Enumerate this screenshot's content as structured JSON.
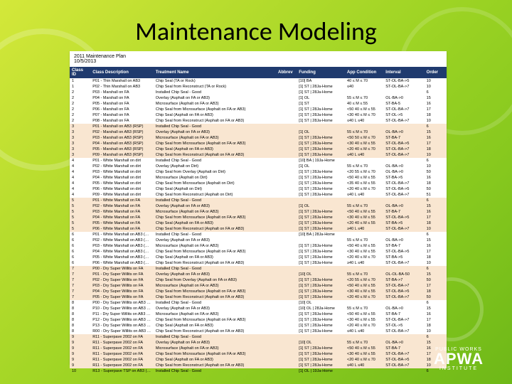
{
  "title": "Maintenance Modeling",
  "doc_header_line1": "2011 Maintenance Plan",
  "doc_header_line2": "10/5/2013",
  "headers": [
    "Class ID",
    "Class Description",
    "Treatment Name",
    "Abbrev",
    "Funding",
    "App Condition",
    "Interval",
    "Order"
  ],
  "col_colors": {
    "header_bg": "#1f3a6e",
    "header_fg": "#ffffff",
    "shade_bg": "#f9e6d1",
    "page_bg": "#ffffff"
  },
  "rows": [
    {
      "s": 0,
      "d": [
        "1",
        "P01 - Thin Marshall on AB3",
        "Chip Seal (TA or Rock)",
        "",
        "[10] BA",
        "40 ≤ M ≤ 70",
        "ST-OL-BA->5",
        "10"
      ]
    },
    {
      "s": 0,
      "d": [
        "1",
        "P02 - Thin Marshall on AB3",
        "Chip Seal from Reconstruct (TA or Rock)",
        "",
        "[1] ST | 28Ja-Home",
        "≤40",
        "ST-OL-BA->7",
        "10"
      ]
    },
    {
      "s": 0,
      "d": [
        "2",
        "P03 - Marshall on FA",
        "Installed Chip Seal - Good",
        "",
        "[1] ST | 28Ja-Home",
        "",
        "",
        "6"
      ]
    },
    {
      "s": 0,
      "d": [
        "2",
        "P04 - Marshall on FA",
        "Overlay (Asphalt on FA or AB3)",
        "",
        "[1] OL",
        "55 ≤ M ≤ 70",
        "OL-BA->0",
        "15"
      ]
    },
    {
      "s": 0,
      "d": [
        "2",
        "P05 - Marshall on FA",
        "Microsurface (Asphalt on FA or AB3)",
        "",
        "[1] ST",
        "40 ≤ M ≤ 55",
        "ST-BA-5",
        "16"
      ]
    },
    {
      "s": 0,
      "d": [
        "2",
        "P06 - Marshall on FA",
        "Chip Seal from Microsurface (Asphalt on FA or AB3)",
        "",
        "[1] ST | 28Ja-Home",
        "<50 40 ≤ M ≤ 55",
        "ST-OL-BA->7",
        "17"
      ]
    },
    {
      "s": 0,
      "d": [
        "2",
        "P07 - Marshall on FA",
        "Chip Seal (Asphalt on FA or AB3)",
        "",
        "[1] ST | 28Ja-Home",
        "<30 40 ≤ M ≤ 70",
        "ST-OL->5",
        "18"
      ]
    },
    {
      "s": 0,
      "d": [
        "2",
        "P08 - Marshall on FA",
        "Chip Seal from Reconstruct (Asphalt on FA or AB3)",
        "",
        "[1] ST | 28Ja-Home",
        "≤40 L ≤40",
        "ST-OL-BA->7",
        "10"
      ]
    },
    {
      "s": 1,
      "d": [
        "3",
        "P01 - Marshall on AB3 (RSP)",
        "Installed Chip Seal - Good",
        "",
        "",
        "",
        "",
        "6"
      ]
    },
    {
      "s": 1,
      "d": [
        "3",
        "P02 - Marshall on AB3 (RSP)",
        "Overlay (Asphalt on FA or AB3)",
        "",
        "[1] OL",
        "55 ≤ M ≤ 70",
        "OL-BA->0",
        "15"
      ]
    },
    {
      "s": 1,
      "d": [
        "3",
        "P03 - Marshall on AB3 (RSP)",
        "Microsurface (Asphalt on FA or AB3)",
        "",
        "[1] ST | 28Ja-Home",
        "<50 50 ≤ M ≤ 70",
        "ST-BA-7",
        "16"
      ]
    },
    {
      "s": 1,
      "d": [
        "3",
        "P04 - Marshall on AB3 (RSP)",
        "Chip Seal from Microsurface (Asphalt on FA or AB3)",
        "",
        "[1] ST | 28Ja-Home",
        "<30 40 ≤ M ≤ 55",
        "ST-OL-BA->5",
        "17"
      ]
    },
    {
      "s": 1,
      "d": [
        "3",
        "P05 - Marshall on AB3 (RSP)",
        "Chip Seal (Asphalt on FA or AB3)",
        "",
        "[1] ST | 28Ja-Home",
        "<20 40 ≤ M ≤ 70",
        "ST-OL-BA->7",
        "18"
      ]
    },
    {
      "s": 1,
      "d": [
        "3",
        "P09 - Marshall on AB3 (RSP)",
        "Chip Seal from Reconstruct (Asphalt on FA or AB3)",
        "",
        "[1] ST | 28Ja-Home",
        "≤40 L ≤40",
        "ST-OL-BA->7",
        "10"
      ]
    },
    {
      "s": 0,
      "d": [
        "4",
        "P01 - White Marshall on dirt",
        "Installed Chip Seal - Good",
        "",
        "[10] BA | 19Ja-Home",
        "",
        "",
        "6"
      ]
    },
    {
      "s": 0,
      "d": [
        "4",
        "P02 - White Marshall on dirt",
        "Overlay (Asphalt on Dirt)",
        "",
        "[1] OL",
        "55 ≤ M ≤ 70",
        "OL-BA->0",
        "10"
      ]
    },
    {
      "s": 0,
      "d": [
        "4",
        "P03 - White Marshall on dirt",
        "Chip Seal from Overlay (Asphalt on Dirt)",
        "",
        "[1] ST | 28Ja-Home",
        "<20 55 ≤ M ≤ 70",
        "OL-BA->0",
        "50"
      ]
    },
    {
      "s": 0,
      "d": [
        "4",
        "P04 - White Marshall on dirt",
        "Microsurface (Asphalt on Dirt)",
        "",
        "[1] ST | 28Ja-Home",
        "<50 40 ≤ M ≤ 55",
        "ST-BA->5",
        "16"
      ]
    },
    {
      "s": 0,
      "d": [
        "4",
        "P05 - White Marshall on dirt",
        "Chip Seal from Microsurface (Asphalt on Dirt)",
        "",
        "[1] ST | 28Ja-Home",
        "<35 40 ≤ M ≤ 55",
        "ST-OL-BA->7",
        "18"
      ]
    },
    {
      "s": 0,
      "d": [
        "4",
        "P06 - White Marshall on dirt",
        "Chip Seal (Asphalt on Dirt)",
        "",
        "[1] ST | 28Ja-Home",
        "<20 40 ≤ M ≤ 70",
        "ST-OL-BA->5",
        "50"
      ]
    },
    {
      "s": 0,
      "d": [
        "4",
        "P09 - White Marshall on dirt",
        "Chip Seal from Reconstruct (Asphalt on Dirt)",
        "",
        "[1] ST | 28Ja-Home",
        "≤40 L ≤40",
        "ST-OL-BA->7",
        "51"
      ]
    },
    {
      "s": 1,
      "d": [
        "5",
        "P01 - White Marshall on FA",
        "Installed Chip Seal - Good",
        "",
        "",
        "",
        "",
        "6"
      ]
    },
    {
      "s": 1,
      "d": [
        "5",
        "P02 - White Marshall on FA",
        "Overlay (Asphalt on FA or AB3)",
        "",
        "[1] OL",
        "55 ≤ M ≤ 70",
        "OL-BA->0",
        "15"
      ]
    },
    {
      "s": 1,
      "d": [
        "5",
        "P03 - White Marshall on FA",
        "Microsurface (Asphalt on FA or AB3)",
        "",
        "[1] ST | 28Ja-Home",
        "<50 40 ≤ M ≤ 55",
        "ST-BA-7",
        "16"
      ]
    },
    {
      "s": 1,
      "d": [
        "5",
        "P04 - White Marshall on FA",
        "Chip Seal from Microsurface (Asphalt on FA or AB3)",
        "",
        "[1] ST | 28Ja-Home",
        "<30 40 ≤ M ≤ 55",
        "ST-OL-BA->5",
        "17"
      ]
    },
    {
      "s": 1,
      "d": [
        "5",
        "P05 - White Marshall on FA",
        "Chip Seal (Asphalt on FA or AB3)",
        "",
        "[1] ST | 28Ja-Home",
        "<20 40 ≤ M ≤ 55",
        "ST-BA->5",
        "18"
      ]
    },
    {
      "s": 1,
      "d": [
        "5",
        "P06 - White Marshall on FA",
        "Chip Seal from Reconstruct (Asphalt on FA or AB3)",
        "",
        "[1] ST | 28Ja-Home",
        "≥40 L ≤40",
        "ST-OL-BA->7",
        "10"
      ]
    },
    {
      "s": 0,
      "d": [
        "6",
        "P01 - White Marshall on AB3 (RSP)",
        "Installed Chip Seal - Good",
        "",
        "[10] BA | 28Ja-Home",
        "",
        "",
        "6"
      ]
    },
    {
      "s": 0,
      "d": [
        "6",
        "P02 - White Marshall on AB3 (RSP)",
        "Overlay (Asphalt on FA or AB3)",
        "",
        "",
        "55 ≤ M ≤ 70",
        "OL-BA->0",
        "15"
      ]
    },
    {
      "s": 0,
      "d": [
        "6",
        "P03 - White Marshall on AB3 (RSP)",
        "Microsurface (Asphalt on FA or AB3)",
        "",
        "[1] ST | 28Ja-Home",
        "<50 40 ≤ M ≤ 55",
        "ST-BA-7",
        "16"
      ]
    },
    {
      "s": 0,
      "d": [
        "6",
        "P04 - White Marshall on AB3 (RSP)",
        "Chip Seal from Microsurface (Asphalt on FA or AB3)",
        "",
        "[1] ST | 28Ja-Home",
        "<30 40 ≤ M ≤ 55",
        "ST-OL-BA->5",
        "17"
      ]
    },
    {
      "s": 0,
      "d": [
        "6",
        "P05 - White Marshall on AB3 (RSP)",
        "Chip Seal (Asphalt on FA or AB3)",
        "",
        "[1] ST | 28Ja-Home",
        "<20 40 ≤ M ≤ 70",
        "ST-BA->5",
        "18"
      ]
    },
    {
      "s": 0,
      "d": [
        "6",
        "P06 - White Marshall on AB3 (RSP)",
        "Chip Seal from Reconstruct (Asphalt on FA or AB3)",
        "",
        "[1] ST | 28Ja-Home",
        "≥40 L ≤40",
        "ST-OL-BA->7",
        "10"
      ]
    },
    {
      "s": 1,
      "d": [
        "7",
        "P00 - Dry Super Willits on FA",
        "Installed Chip Seal - Good",
        "",
        "",
        "",
        "",
        "6"
      ]
    },
    {
      "s": 1,
      "d": [
        "7",
        "P01 - Dry Super Willits on FA",
        "Overlay (Asphalt on FA or AB3)",
        "",
        "[10] OL",
        "55 ≤ M ≤ 70",
        "OL-OL-BA-50",
        "15"
      ]
    },
    {
      "s": 1,
      "d": [
        "7",
        "P02 - Dry Super Willits on FA",
        "Chip Seal from Overlay (Asphalt on FA or AB3)",
        "",
        "[1] ST | 28Ja-Home",
        "<20 55 ≤ M ≤ 70",
        "ST-BA->7",
        "50"
      ]
    },
    {
      "s": 1,
      "d": [
        "7",
        "P03 - Dry Super Willits on FA",
        "Microsurface (Asphalt on FA or AB3)",
        "",
        "[1] ST | 28Ja-Home",
        "<50 40 ≤ M ≤ 55",
        "ST-OL-BA->7",
        "17"
      ]
    },
    {
      "s": 1,
      "d": [
        "7",
        "P04 - Dry Super Willits on FA",
        "Chip Seal from Microsurface (Asphalt on FA or AB3)",
        "",
        "[1] ST | 28Ja-Home",
        "<30 40 ≤ M ≤ 55",
        "ST-OL-BA->5",
        "18"
      ]
    },
    {
      "s": 1,
      "d": [
        "7",
        "P05 - Dry Super Willits on FA",
        "Chip Seal from Reconstruct (Asphalt on FA or AB3)",
        "",
        "[1] ST | 28Ja-Home",
        "<20 40 ≤ M ≤ 70",
        "ST-OL-BA->7",
        "50"
      ]
    },
    {
      "s": 0,
      "d": [
        "8",
        "P00 - Dry Super Willits on AB3 (RSP)",
        "Installed Chip Seal - Good",
        "",
        "[10] OL",
        "",
        "",
        "6"
      ]
    },
    {
      "s": 0,
      "d": [
        "8",
        "P10 - Dry Super Willits on AB3 (RSP)",
        "Overlay (Asphalt on FA or AB3)",
        "",
        "[10] OL | 28Ja-Home",
        "55 ≤ M ≤ 70",
        "OL-BA->0",
        "15"
      ]
    },
    {
      "s": 0,
      "d": [
        "8",
        "P11 - Dry Super Willits on AB3 (RSP)",
        "Microsurface (Asphalt on FA or AB3)",
        "",
        "[1] ST | 28Ja-Home",
        "<50 40 ≤ M ≤ 55",
        "ST-BA-7",
        "16"
      ]
    },
    {
      "s": 0,
      "d": [
        "8",
        "P12 - Dry Super Willits on AB3 (RSP)",
        "Chip Seal from Microsurface (Asphalt on FA or AB3)",
        "",
        "[1] ST | 28Ja-Home",
        "<30 40 ≤ M ≤ 55",
        "ST-OL-BA->7",
        "17"
      ]
    },
    {
      "s": 0,
      "d": [
        "8",
        "P13 - Dry Super Willits on AB3 (RSP)",
        "Chip Seal (Asphalt on FA or AB3)",
        "",
        "[1] ST | 28Ja-Home",
        "<20 40 ≤ M ≤ 70",
        "ST-OL->5",
        "18"
      ]
    },
    {
      "s": 0,
      "d": [
        "8",
        "R00 - Dry Super Willits on AB3 (RSP)",
        "Chip Seal from Reconstruct (Asphalt on FA or AB3)",
        "",
        "[1] ST | 28Ja-Home",
        "≤40 L ≤40",
        "ST-OL-BA->7",
        "10"
      ]
    },
    {
      "s": 1,
      "d": [
        "9",
        "R11 - Superpave 2002 on FA",
        "Installed Chip Seal - Good",
        "",
        "",
        "",
        "",
        "6"
      ]
    },
    {
      "s": 1,
      "d": [
        "9",
        "R11 - Superpave 2002 on FA",
        "Overlay (Asphalt on FA or AB3)",
        "",
        "[10] OL",
        "55 ≤ M ≤ 70",
        "OL-BA->0",
        "15"
      ]
    },
    {
      "s": 1,
      "d": [
        "9",
        "R11 - Superpave 2002 on FA",
        "Microsurface (Asphalt on FA or AB3)",
        "",
        "[1] ST | 28Ja-Home",
        "<50 40 ≤ M ≤ 55",
        "ST-BA-7",
        "16"
      ]
    },
    {
      "s": 1,
      "d": [
        "9",
        "R11 - Superpave 2002 on FA",
        "Chip Seal from Microsurface (Asphalt on FA or AB3)",
        "",
        "[1] ST | 28Ja-Home",
        "<30 40 ≤ M ≤ 55",
        "ST-OL-BA->7",
        "17"
      ]
    },
    {
      "s": 1,
      "d": [
        "9",
        "R11 - Superpave 2002 on FA",
        "Chip Seal (Asphalt on FA or AB3)",
        "",
        "[1] ST | 28Ja-Home",
        "<20 40 ≤ M ≤ 70",
        "ST-OL-BA->5",
        "18"
      ]
    },
    {
      "s": 1,
      "d": [
        "9",
        "R11 - Superpave 2002 on FA",
        "Chip Seal from Reconstruct (Asphalt on FA or AB3)",
        "",
        "[1] ST | 28Ja-Home",
        "≤40 L ≤40",
        "ST-OL-BA->7",
        "10"
      ]
    },
    {
      "s": 0,
      "d": [
        "10",
        "R13 - Superpave TSP on AB3 (RSP)",
        "Installed Chip Seal - Good",
        "",
        "[1] OL | 19Ja-Home",
        "",
        "",
        "6"
      ]
    }
  ],
  "logo": {
    "top": "PUBLIC WORKS",
    "main": "APWA",
    "bot": "INSTITUTE"
  }
}
